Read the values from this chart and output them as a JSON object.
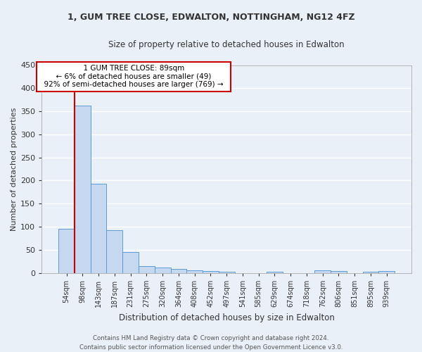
{
  "title1": "1, GUM TREE CLOSE, EDWALTON, NOTTINGHAM, NG12 4FZ",
  "title2": "Size of property relative to detached houses in Edwalton",
  "xlabel": "Distribution of detached houses by size in Edwalton",
  "ylabel": "Number of detached properties",
  "categories": [
    "54sqm",
    "98sqm",
    "143sqm",
    "187sqm",
    "231sqm",
    "275sqm",
    "320sqm",
    "364sqm",
    "408sqm",
    "452sqm",
    "497sqm",
    "541sqm",
    "585sqm",
    "629sqm",
    "674sqm",
    "718sqm",
    "762sqm",
    "806sqm",
    "851sqm",
    "895sqm",
    "939sqm"
  ],
  "values": [
    95,
    362,
    193,
    93,
    45,
    15,
    11,
    8,
    6,
    4,
    3,
    0,
    0,
    3,
    0,
    0,
    6,
    4,
    0,
    3,
    4
  ],
  "bar_color": "#c5d8f0",
  "bar_edge_color": "#5b9bd5",
  "annotation_text_line1": "1 GUM TREE CLOSE: 89sqm",
  "annotation_text_line2": "← 6% of detached houses are smaller (49)",
  "annotation_text_line3": "92% of semi-detached houses are larger (769) →",
  "annotation_box_color": "#ffffff",
  "annotation_box_edge": "#cc0000",
  "red_line_color": "#cc0000",
  "ylim": [
    0,
    450
  ],
  "yticks": [
    0,
    50,
    100,
    150,
    200,
    250,
    300,
    350,
    400,
    450
  ],
  "footer_line1": "Contains HM Land Registry data © Crown copyright and database right 2024.",
  "footer_line2": "Contains public sector information licensed under the Open Government Licence v3.0.",
  "bg_color": "#eaf0f8",
  "grid_color": "#ffffff",
  "font_color": "#333333"
}
